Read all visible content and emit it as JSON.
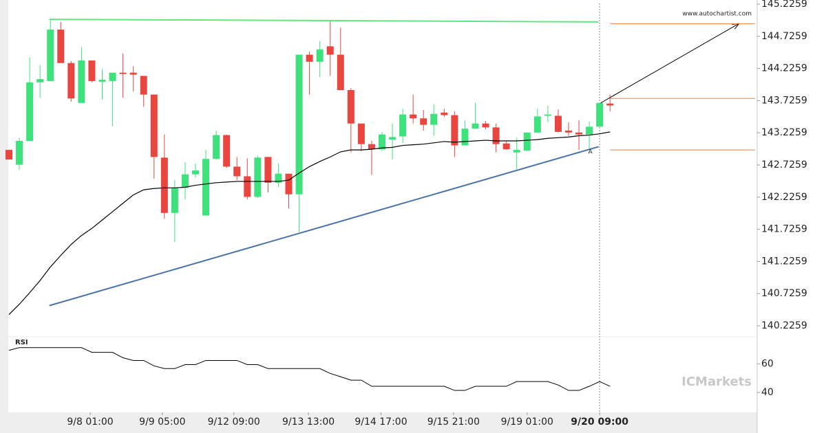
{
  "chart_data": {
    "type": "candlestick",
    "xlim": [
      0,
      72
    ],
    "ylim": [
      140.055,
      145.29
    ],
    "yticks": [
      145.2259,
      144.7259,
      144.2259,
      143.7259,
      143.2259,
      142.7259,
      142.2259,
      141.7259,
      141.2259,
      140.7259,
      140.2259
    ],
    "xticks": [
      {
        "value": 7.84,
        "label": "9/8 01:00"
      },
      {
        "value": 14.8,
        "label": "9/9 05:00"
      },
      {
        "value": 21.7,
        "label": "9/12 09:00"
      },
      {
        "value": 28.9,
        "label": "9/13 13:00"
      },
      {
        "value": 35.9,
        "label": "9/14 17:00"
      },
      {
        "value": 42.9,
        "label": "9/15 21:00"
      },
      {
        "value": 50,
        "label": "9/19 01:00"
      },
      {
        "value": 57,
        "label": "9/20 09:00"
      }
    ],
    "current_x": 57,
    "up_color": "#3ee27c",
    "down_color": "#e8463f",
    "open": [
      142.96,
      142.73,
      143.1,
      144.01,
      144.03,
      144.83,
      144.31,
      143.69,
      144.35,
      144.02,
      144.03,
      144.16,
      144.16,
      144.11,
      143.82,
      142.84,
      141.98,
      142.37,
      142.58,
      141.94,
      142.82,
      143.19,
      142.7,
      142.55,
      142.23,
      142.85,
      142.45,
      142.59,
      142.27,
      144.44,
      144.33,
      144.57,
      144.44,
      143.89,
      143.37,
      143.05,
      142.97,
      143.12,
      143.17,
      143.51,
      143.45,
      143.35,
      143.54,
      143.5,
      143.03,
      143.29,
      143.37,
      143.31,
      143.06,
      142.92,
      142.95,
      143.23,
      143.49,
      143.49,
      143.26,
      143.23,
      143.2,
      143.32,
      143.68
    ],
    "high": [
      142.96,
      143.15,
      144.4,
      144.28,
      144.99,
      144.95,
      144.34,
      144.56,
      144.35,
      144.22,
      144.16,
      144.46,
      144.26,
      144.11,
      143.82,
      143.2,
      142.49,
      142.77,
      142.75,
      142.96,
      143.26,
      143.2,
      142.85,
      142.83,
      142.87,
      142.85,
      142.75,
      142.59,
      144.44,
      144.49,
      144.65,
      144.97,
      144.86,
      143.92,
      143.37,
      143.1,
      143.24,
      143.37,
      143.6,
      143.82,
      143.58,
      143.67,
      143.6,
      143.56,
      143.42,
      143.69,
      143.41,
      143.37,
      143.1,
      143.15,
      143.23,
      143.6,
      143.65,
      143.59,
      143.39,
      143.42,
      143.4,
      143.69,
      143.82
    ],
    "low": [
      142.81,
      142.65,
      143.1,
      143.77,
      144.03,
      144.31,
      143.71,
      143.69,
      144.01,
      143.74,
      143.33,
      143.77,
      143.87,
      143.63,
      142.51,
      141.89,
      141.53,
      142.19,
      142.53,
      141.94,
      142.81,
      142.68,
      142.49,
      142.19,
      142.21,
      142.3,
      142.38,
      142.05,
      141.68,
      143.82,
      144.09,
      144.11,
      143.89,
      142.92,
      142.94,
      142.57,
      142.94,
      142.81,
      143.07,
      143.37,
      143.26,
      143.18,
      143.47,
      142.85,
      143.03,
      143.29,
      143.28,
      142.92,
      142.96,
      142.66,
      142.94,
      143.23,
      143.39,
      143.23,
      143.18,
      142.96,
      142.96,
      143.32,
      143.56
    ],
    "close": [
      142.81,
      143.1,
      144.01,
      144.06,
      144.83,
      144.31,
      143.76,
      144.35,
      144.03,
      144.05,
      144.16,
      144.14,
      144.13,
      143.82,
      142.85,
      141.98,
      142.37,
      142.58,
      142.64,
      142.82,
      143.19,
      142.7,
      142.55,
      142.23,
      142.84,
      142.45,
      142.59,
      142.27,
      144.44,
      144.33,
      144.52,
      144.44,
      143.89,
      143.37,
      143.05,
      142.97,
      143.2,
      143.16,
      143.51,
      143.45,
      143.35,
      143.52,
      143.5,
      143.03,
      143.29,
      143.37,
      143.31,
      143.05,
      142.97,
      142.96,
      143.23,
      143.48,
      143.51,
      143.24,
      143.23,
      143.2,
      143.32,
      143.69,
      143.65
    ],
    "ma": {
      "color": "#000000",
      "values": [
        140.4,
        140.56,
        140.74,
        140.93,
        141.14,
        141.32,
        141.49,
        141.63,
        141.74,
        141.87,
        142.0,
        142.13,
        142.26,
        142.34,
        142.36,
        142.37,
        142.37,
        142.38,
        142.41,
        142.43,
        142.45,
        142.46,
        142.47,
        142.47,
        142.47,
        142.47,
        142.47,
        142.49,
        142.6,
        142.7,
        142.78,
        142.85,
        142.93,
        142.96,
        142.96,
        142.97,
        142.99,
        143.0,
        143.03,
        143.04,
        143.05,
        143.07,
        143.09,
        143.08,
        143.09,
        143.1,
        143.11,
        143.1,
        143.1,
        143.1,
        143.11,
        143.12,
        143.14,
        143.15,
        143.16,
        143.18,
        143.19,
        143.21,
        143.24
      ]
    },
    "lines": [
      {
        "color": "#5ee87e",
        "x": [
          3.9,
          56.9
        ],
        "values": [
          144.99,
          144.95
        ]
      },
      {
        "color": "#4a72a8",
        "x": [
          3.9,
          56.9
        ],
        "values": [
          140.54,
          143.01
        ]
      },
      {
        "color": "#000000",
        "x": [
          57.1,
          70.4
        ],
        "values": [
          143.69,
          144.92
        ],
        "arrow": true
      },
      {
        "color": "#e8823f",
        "x": [
          58,
          72
        ],
        "values": [
          144.92,
          144.92
        ]
      },
      {
        "color": "#e8823f",
        "x": [
          58,
          72
        ],
        "values": [
          143.76,
          143.76
        ]
      },
      {
        "color": "#e8823f",
        "x": [
          58,
          72
        ],
        "values": [
          142.96,
          142.96
        ]
      }
    ],
    "marker": {
      "text": "A",
      "x": 56.1,
      "value": 142.93,
      "color": "#e8823f"
    },
    "watermark": "www.autochartist.com",
    "brand": "ICMarkets",
    "rsi": {
      "label": "RSI",
      "ylim": [
        26,
        79
      ],
      "yticks": [
        60,
        40
      ],
      "values": [
        69.5,
        71.4,
        71.4,
        71.4,
        71.4,
        71.4,
        71.4,
        71.4,
        68.1,
        68.1,
        68.1,
        64.3,
        62.4,
        62.4,
        58.6,
        56.7,
        56.7,
        59.5,
        59.5,
        62.4,
        62.4,
        62.4,
        62.4,
        59.5,
        59.5,
        56.7,
        56.7,
        56.7,
        56.7,
        56.7,
        56.7,
        53.3,
        51.0,
        48.6,
        48.6,
        44.3,
        44.3,
        44.3,
        44.3,
        44.3,
        44.3,
        44.3,
        44.3,
        41.4,
        41.4,
        44.3,
        44.3,
        44.3,
        44.3,
        47.6,
        47.6,
        47.6,
        47.6,
        45.2,
        41.4,
        41.4,
        44.3,
        47.6,
        44.3
      ]
    }
  }
}
